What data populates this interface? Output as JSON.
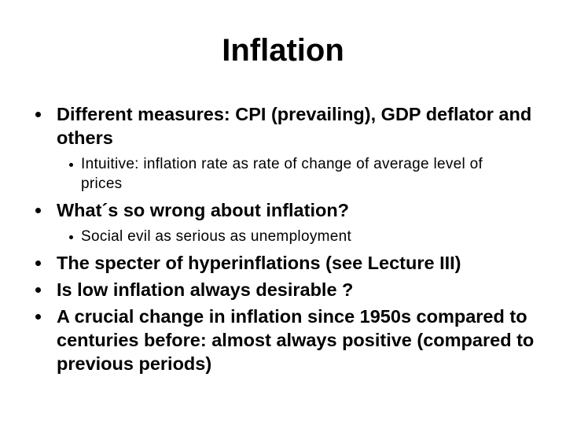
{
  "title": "Inflation",
  "items": [
    {
      "level": 1,
      "text": "Different measures: CPI (prevailing), GDP deflator and others"
    },
    {
      "level": 2,
      "text": "Intuitive: inflation rate as rate of change of average level of prices"
    },
    {
      "level": 1,
      "text": "What´s so wrong about inflation?"
    },
    {
      "level": 2,
      "text": "Social evil as serious as unemployment"
    },
    {
      "level": 1,
      "text": "The specter of hyperinflations (see Lecture III)"
    },
    {
      "level": 1,
      "text": "Is low inflation always desirable ?"
    },
    {
      "level": 1,
      "text": "A crucial change in inflation since 1950s compared to centuries before: almost always positive (compared to previous periods)"
    }
  ]
}
